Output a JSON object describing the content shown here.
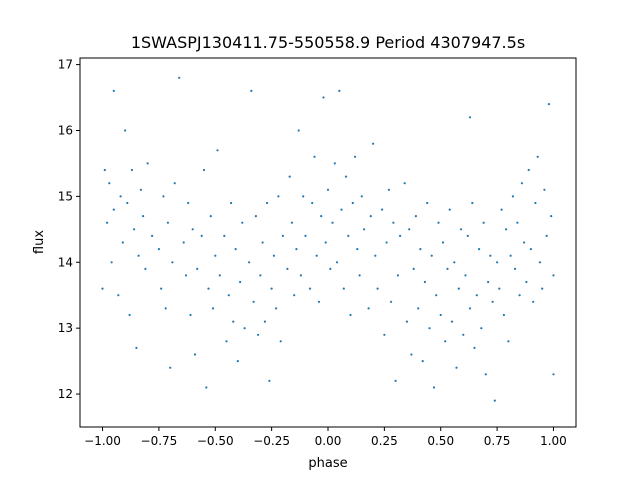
{
  "chart_data": {
    "type": "scatter",
    "title": "1SWASPJ130411.75-550558.9 Period 4307947.5s",
    "xlabel": "phase",
    "ylabel": "flux",
    "xlim": [
      -1.1,
      1.1
    ],
    "ylim": [
      11.5,
      17.1
    ],
    "xticks": [
      {
        "value": -1.0,
        "label": "−1.00"
      },
      {
        "value": -0.75,
        "label": "−0.75"
      },
      {
        "value": -0.5,
        "label": "−0.50"
      },
      {
        "value": -0.25,
        "label": "−0.25"
      },
      {
        "value": 0.0,
        "label": "0.00"
      },
      {
        "value": 0.25,
        "label": "0.25"
      },
      {
        "value": 0.5,
        "label": "0.50"
      },
      {
        "value": 0.75,
        "label": "0.75"
      },
      {
        "value": 1.0,
        "label": "1.00"
      }
    ],
    "yticks": [
      {
        "value": 12,
        "label": "12"
      },
      {
        "value": 13,
        "label": "13"
      },
      {
        "value": 14,
        "label": "14"
      },
      {
        "value": 15,
        "label": "15"
      },
      {
        "value": 16,
        "label": "16"
      },
      {
        "value": 17,
        "label": "17"
      }
    ],
    "grid": false,
    "marker_color": "#1f77b4",
    "series": [
      {
        "points": [
          [
            -0.98,
            14.6
          ],
          [
            -0.97,
            15.2
          ],
          [
            -0.96,
            14.0
          ],
          [
            -0.95,
            16.6
          ],
          [
            -0.95,
            14.8
          ],
          [
            -0.93,
            13.5
          ],
          [
            -0.92,
            15.0
          ],
          [
            -0.91,
            14.3
          ],
          [
            -0.9,
            16.0
          ],
          [
            -0.89,
            14.9
          ],
          [
            -0.88,
            13.2
          ],
          [
            -0.87,
            15.4
          ],
          [
            -0.86,
            14.5
          ],
          [
            -0.85,
            12.7
          ],
          [
            -0.84,
            14.1
          ],
          [
            -0.83,
            15.1
          ],
          [
            -0.82,
            14.7
          ],
          [
            -0.81,
            13.9
          ],
          [
            -0.8,
            15.5
          ],
          [
            -0.78,
            14.4
          ],
          [
            -0.75,
            14.2
          ],
          [
            -0.74,
            13.6
          ],
          [
            -0.73,
            15.0
          ],
          [
            -0.72,
            13.3
          ],
          [
            -0.71,
            14.6
          ],
          [
            -0.7,
            12.4
          ],
          [
            -0.69,
            14.0
          ],
          [
            -0.68,
            15.2
          ],
          [
            -0.66,
            16.8
          ],
          [
            -0.64,
            14.3
          ],
          [
            -0.63,
            13.8
          ],
          [
            -0.62,
            14.9
          ],
          [
            -0.61,
            13.2
          ],
          [
            -0.6,
            14.5
          ],
          [
            -0.59,
            12.6
          ],
          [
            -0.58,
            13.9
          ],
          [
            -0.56,
            14.4
          ],
          [
            -0.55,
            15.4
          ],
          [
            -0.54,
            12.1
          ],
          [
            -0.53,
            13.6
          ],
          [
            -0.52,
            14.7
          ],
          [
            -0.51,
            13.3
          ],
          [
            -0.5,
            14.1
          ],
          [
            -0.49,
            15.7
          ],
          [
            -0.48,
            13.8
          ],
          [
            -0.46,
            14.4
          ],
          [
            -0.45,
            12.8
          ],
          [
            -0.44,
            13.5
          ],
          [
            -0.43,
            14.9
          ],
          [
            -0.42,
            13.1
          ],
          [
            -0.41,
            14.2
          ],
          [
            -0.4,
            12.5
          ],
          [
            -0.39,
            13.7
          ],
          [
            -0.38,
            14.6
          ],
          [
            -0.37,
            13.0
          ],
          [
            -0.35,
            14.0
          ],
          [
            -0.34,
            16.6
          ],
          [
            -0.33,
            13.4
          ],
          [
            -0.32,
            14.7
          ],
          [
            -0.31,
            12.9
          ],
          [
            -0.3,
            13.8
          ],
          [
            -0.29,
            14.3
          ],
          [
            -0.28,
            13.1
          ],
          [
            -0.27,
            14.9
          ],
          [
            -0.26,
            12.2
          ],
          [
            -0.25,
            13.6
          ],
          [
            -0.24,
            14.1
          ],
          [
            -0.23,
            13.3
          ],
          [
            -0.22,
            15.0
          ],
          [
            -0.21,
            12.8
          ],
          [
            -0.2,
            14.4
          ],
          [
            -0.18,
            13.9
          ],
          [
            -0.17,
            15.3
          ],
          [
            -0.16,
            14.6
          ],
          [
            -0.15,
            13.5
          ],
          [
            -0.14,
            14.2
          ],
          [
            -0.13,
            16.0
          ],
          [
            -0.12,
            13.8
          ],
          [
            -0.11,
            15.0
          ],
          [
            -0.1,
            14.4
          ],
          [
            -0.08,
            13.6
          ],
          [
            -0.07,
            14.9
          ],
          [
            -0.06,
            15.6
          ],
          [
            -0.05,
            14.1
          ],
          [
            -0.04,
            13.4
          ],
          [
            -0.03,
            14.7
          ],
          [
            -0.02,
            16.5
          ],
          [
            -0.01,
            14.3
          ],
          [
            0.0,
            15.1
          ],
          [
            0.01,
            13.9
          ],
          [
            0.02,
            14.6
          ],
          [
            0.03,
            15.5
          ],
          [
            0.04,
            14.0
          ],
          [
            0.05,
            16.6
          ],
          [
            0.06,
            14.8
          ],
          [
            0.07,
            13.6
          ],
          [
            0.08,
            15.3
          ],
          [
            0.09,
            14.4
          ],
          [
            0.1,
            13.2
          ],
          [
            0.11,
            14.9
          ],
          [
            0.12,
            15.6
          ],
          [
            0.13,
            14.2
          ],
          [
            0.14,
            13.8
          ],
          [
            0.15,
            15.0
          ],
          [
            0.16,
            14.5
          ],
          [
            0.18,
            13.3
          ],
          [
            0.19,
            14.7
          ],
          [
            0.2,
            15.8
          ],
          [
            0.21,
            14.1
          ],
          [
            0.22,
            13.6
          ],
          [
            0.24,
            14.8
          ],
          [
            0.25,
            12.9
          ],
          [
            0.26,
            14.3
          ],
          [
            0.27,
            15.1
          ],
          [
            0.28,
            13.4
          ],
          [
            0.29,
            14.6
          ],
          [
            0.3,
            12.2
          ],
          [
            0.31,
            13.8
          ],
          [
            0.32,
            14.4
          ],
          [
            0.34,
            15.2
          ],
          [
            0.35,
            13.1
          ],
          [
            0.36,
            14.5
          ],
          [
            0.37,
            12.6
          ],
          [
            0.38,
            13.9
          ],
          [
            0.39,
            14.7
          ],
          [
            0.4,
            13.3
          ],
          [
            0.41,
            14.2
          ],
          [
            0.42,
            12.5
          ],
          [
            0.43,
            13.7
          ],
          [
            0.44,
            14.9
          ],
          [
            0.45,
            13.0
          ],
          [
            0.46,
            14.1
          ],
          [
            0.47,
            12.1
          ],
          [
            0.48,
            13.5
          ],
          [
            0.49,
            14.6
          ],
          [
            0.5,
            13.2
          ],
          [
            0.51,
            14.3
          ],
          [
            0.52,
            12.8
          ],
          [
            0.53,
            13.9
          ],
          [
            0.54,
            14.8
          ],
          [
            0.55,
            13.1
          ],
          [
            0.56,
            14.0
          ],
          [
            0.57,
            12.4
          ],
          [
            0.58,
            13.6
          ],
          [
            0.59,
            14.5
          ],
          [
            0.6,
            12.9
          ],
          [
            0.61,
            13.8
          ],
          [
            0.62,
            14.4
          ],
          [
            0.63,
            13.3
          ],
          [
            0.64,
            14.9
          ],
          [
            0.65,
            12.7
          ],
          [
            0.66,
            13.5
          ],
          [
            0.67,
            14.2
          ],
          [
            0.68,
            13.0
          ],
          [
            0.69,
            14.6
          ],
          [
            0.7,
            12.3
          ],
          [
            0.71,
            13.7
          ],
          [
            0.72,
            14.1
          ],
          [
            0.73,
            13.4
          ],
          [
            0.74,
            11.9
          ],
          [
            0.75,
            14.0
          ],
          [
            0.76,
            13.6
          ],
          [
            0.77,
            14.8
          ],
          [
            0.78,
            13.2
          ],
          [
            0.79,
            14.5
          ],
          [
            0.8,
            12.8
          ],
          [
            0.81,
            14.1
          ],
          [
            0.82,
            15.0
          ],
          [
            0.83,
            13.9
          ],
          [
            0.84,
            14.6
          ],
          [
            0.85,
            13.5
          ],
          [
            0.86,
            15.2
          ],
          [
            0.87,
            14.3
          ],
          [
            0.88,
            13.7
          ],
          [
            0.89,
            15.4
          ],
          [
            0.9,
            14.2
          ],
          [
            0.91,
            13.4
          ],
          [
            0.92,
            14.9
          ],
          [
            0.93,
            15.6
          ],
          [
            0.94,
            14.0
          ],
          [
            0.95,
            13.6
          ],
          [
            0.96,
            15.1
          ],
          [
            0.97,
            14.4
          ],
          [
            0.98,
            16.4
          ],
          [
            0.99,
            14.7
          ],
          [
            1.0,
            13.8
          ],
          [
            1.0,
            12.3
          ],
          [
            -1.0,
            13.6
          ],
          [
            -0.99,
            15.4
          ],
          [
            0.63,
            16.2
          ]
        ]
      }
    ]
  }
}
